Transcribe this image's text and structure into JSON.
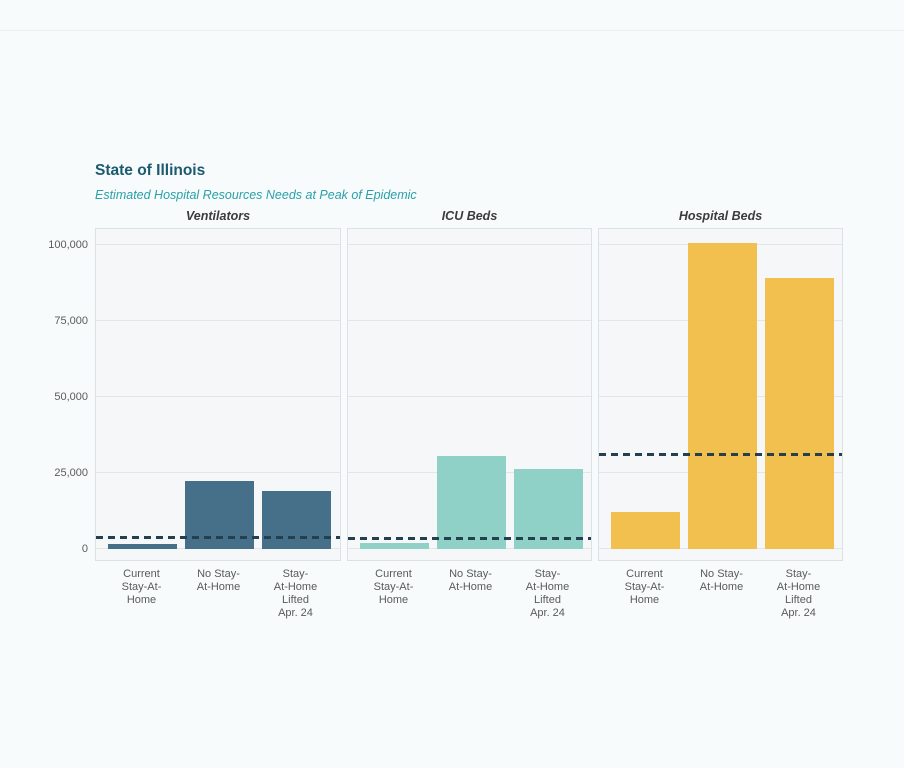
{
  "page": {
    "title": "State of Illinois",
    "subtitle": "Estimated Hospital Resources Needs at Peak of Epidemic"
  },
  "chart_data": {
    "type": "bar",
    "title": "State of Illinois",
    "subtitle": "Estimated Hospital Resources Needs at Peak of Epidemic",
    "categories": [
      "Current Stay-At-Home",
      "No Stay-At-Home",
      "Stay-At-Home Lifted Apr. 24"
    ],
    "category_display_lines": [
      [
        "Current",
        "Stay-At-",
        "Home"
      ],
      [
        "No Stay-",
        "At-Home"
      ],
      [
        "Stay-",
        "At-Home",
        "Lifted",
        "Apr. 24"
      ]
    ],
    "panels": [
      {
        "title": "Ventilators",
        "bar_color": "#46708a",
        "values": [
          1800,
          22500,
          19000
        ],
        "capacity_line": 3500
      },
      {
        "title": "ICU Beds",
        "bar_color": "#8fd1c7",
        "values": [
          1900,
          30700,
          26200
        ],
        "capacity_line": 3400
      },
      {
        "title": "Hospital Beds",
        "bar_color": "#f2c04e",
        "values": [
          12000,
          100700,
          89000
        ],
        "capacity_line": 31000
      }
    ],
    "ylim": [
      0,
      105000
    ],
    "yticks": [
      0,
      25000,
      50000,
      75000,
      100000
    ],
    "ytick_labels": [
      "0",
      "25,000",
      "50,000",
      "75,000",
      "100,000"
    ],
    "grid": "horizontal",
    "legend": "none",
    "capacity_line_style": "dashed",
    "capacity_line_color": "#24404f",
    "colors": {
      "title": "#1b5a70",
      "subtitle": "#2ba0a8",
      "panel_background": "#f5f7f8",
      "panel_border": "#dde1e4",
      "gridline": "#e3e6e9",
      "axis_text": "#5b5b5b",
      "page_background": "#f7fbfc"
    }
  }
}
